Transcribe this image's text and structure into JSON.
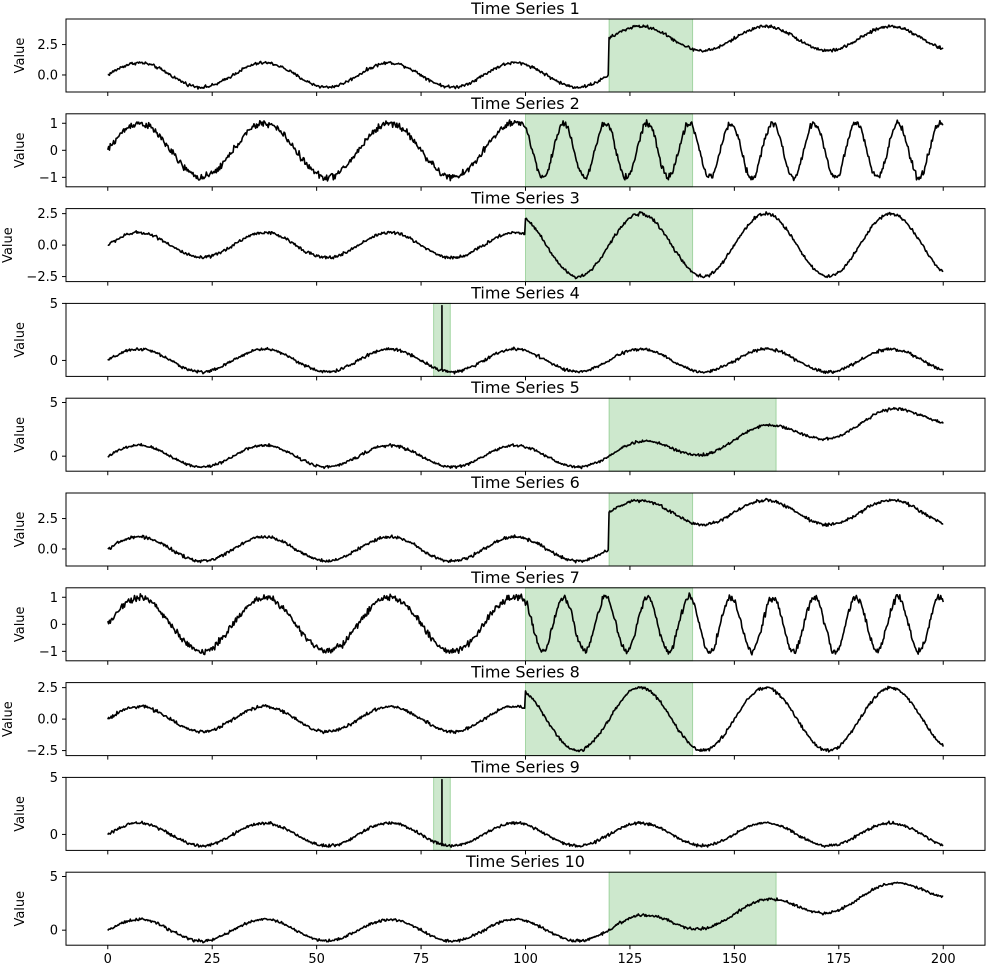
{
  "chart_data": [
    {
      "type": "line",
      "title": "Time Series 1",
      "ylabel": "Value",
      "xlim": [
        -10,
        210
      ],
      "ylim": [
        -1.4,
        4.6
      ],
      "yticks": [
        0.0,
        2.5
      ],
      "ytick_labels": [
        "0.0",
        "2.5"
      ],
      "base": {
        "amplitude": 1,
        "period": 30,
        "noise": 0.08
      },
      "anomaly": {
        "kind": "level_shift",
        "start": 120,
        "offset": 3,
        "shaded_start": 120,
        "shaded_end": 140
      }
    },
    {
      "type": "line",
      "title": "Time Series 2",
      "ylabel": "Value",
      "xlim": [
        -10,
        210
      ],
      "ylim": [
        -1.35,
        1.35
      ],
      "yticks": [
        -1,
        0,
        1
      ],
      "ytick_labels": [
        "−1",
        "0",
        "1"
      ],
      "base": {
        "amplitude": 1,
        "period": 30,
        "noise": 0.08
      },
      "anomaly": {
        "kind": "frequency_change",
        "start": 100,
        "new_period": 10,
        "shaded_start": 100,
        "shaded_end": 140
      }
    },
    {
      "type": "line",
      "title": "Time Series 3",
      "ylabel": "Value",
      "xlim": [
        -10,
        210
      ],
      "ylim": [
        -2.9,
        2.9
      ],
      "yticks": [
        -2.5,
        0.0,
        2.5
      ],
      "ytick_labels": [
        "−2.5",
        "0.0",
        "2.5"
      ],
      "base": {
        "amplitude": 1,
        "period": 30,
        "noise": 0.08
      },
      "anomaly": {
        "kind": "amplitude_change",
        "start": 100,
        "new_amplitude": 2.5,
        "shaded_start": 100,
        "shaded_end": 140
      }
    },
    {
      "type": "line",
      "title": "Time Series 4",
      "ylabel": "Value",
      "xlim": [
        -10,
        210
      ],
      "ylim": [
        -1.4,
        5.0
      ],
      "yticks": [
        0,
        5
      ],
      "ytick_labels": [
        "0",
        "5"
      ],
      "base": {
        "amplitude": 1,
        "period": 30,
        "noise": 0.08
      },
      "anomaly": {
        "kind": "spike",
        "start": 80,
        "peak": 4.8,
        "shaded_start": 78,
        "shaded_end": 82
      }
    },
    {
      "type": "line",
      "title": "Time Series 5",
      "ylabel": "Value",
      "xlim": [
        -10,
        210
      ],
      "ylim": [
        -1.4,
        5.4
      ],
      "yticks": [
        0,
        5
      ],
      "ytick_labels": [
        "0",
        "5"
      ],
      "base": {
        "amplitude": 1,
        "period": 30,
        "noise": 0.08
      },
      "anomaly": {
        "kind": "trend",
        "start": 120,
        "slope": 0.05,
        "shaded_start": 120,
        "shaded_end": 160
      }
    },
    {
      "type": "line",
      "title": "Time Series 6",
      "ylabel": "Value",
      "xlim": [
        -10,
        210
      ],
      "ylim": [
        -1.4,
        4.6
      ],
      "yticks": [
        0.0,
        2.5
      ],
      "ytick_labels": [
        "0.0",
        "2.5"
      ],
      "base": {
        "amplitude": 1,
        "period": 30,
        "noise": 0.08
      },
      "anomaly": {
        "kind": "level_shift",
        "start": 120,
        "offset": 3,
        "shaded_start": 120,
        "shaded_end": 140
      }
    },
    {
      "type": "line",
      "title": "Time Series 7",
      "ylabel": "Value",
      "xlim": [
        -10,
        210
      ],
      "ylim": [
        -1.35,
        1.35
      ],
      "yticks": [
        -1,
        0,
        1
      ],
      "ytick_labels": [
        "−1",
        "0",
        "1"
      ],
      "base": {
        "amplitude": 1,
        "period": 30,
        "noise": 0.08
      },
      "anomaly": {
        "kind": "frequency_change",
        "start": 100,
        "new_period": 10,
        "shaded_start": 100,
        "shaded_end": 140
      }
    },
    {
      "type": "line",
      "title": "Time Series 8",
      "ylabel": "Value",
      "xlim": [
        -10,
        210
      ],
      "ylim": [
        -2.9,
        2.9
      ],
      "yticks": [
        -2.5,
        0.0,
        2.5
      ],
      "ytick_labels": [
        "−2.5",
        "0.0",
        "2.5"
      ],
      "base": {
        "amplitude": 1,
        "period": 30,
        "noise": 0.08
      },
      "anomaly": {
        "kind": "amplitude_change",
        "start": 100,
        "new_amplitude": 2.5,
        "shaded_start": 100,
        "shaded_end": 140
      }
    },
    {
      "type": "line",
      "title": "Time Series 9",
      "ylabel": "Value",
      "xlim": [
        -10,
        210
      ],
      "ylim": [
        -1.4,
        5.0
      ],
      "yticks": [
        0,
        5
      ],
      "ytick_labels": [
        "0",
        "5"
      ],
      "base": {
        "amplitude": 1,
        "period": 30,
        "noise": 0.08
      },
      "anomaly": {
        "kind": "spike",
        "start": 80,
        "peak": 4.8,
        "shaded_start": 78,
        "shaded_end": 82
      }
    },
    {
      "type": "line",
      "title": "Time Series 10",
      "ylabel": "Value",
      "xlim": [
        -10,
        210
      ],
      "ylim": [
        -1.4,
        5.4
      ],
      "yticks": [
        0,
        5
      ],
      "ytick_labels": [
        "0",
        "5"
      ],
      "base": {
        "amplitude": 1,
        "period": 30,
        "noise": 0.08
      },
      "anomaly": {
        "kind": "trend",
        "start": 120,
        "slope": 0.05,
        "shaded_start": 120,
        "shaded_end": 160
      }
    }
  ],
  "shared_x_axis": {
    "ticks": [
      0,
      25,
      50,
      75,
      100,
      125,
      150,
      175,
      200
    ],
    "tick_labels": [
      "0",
      "25",
      "50",
      "75",
      "100",
      "125",
      "150",
      "175",
      "200"
    ]
  },
  "colors": {
    "line": "#000000",
    "shade": "#2ca02c",
    "axes": "#000000"
  }
}
